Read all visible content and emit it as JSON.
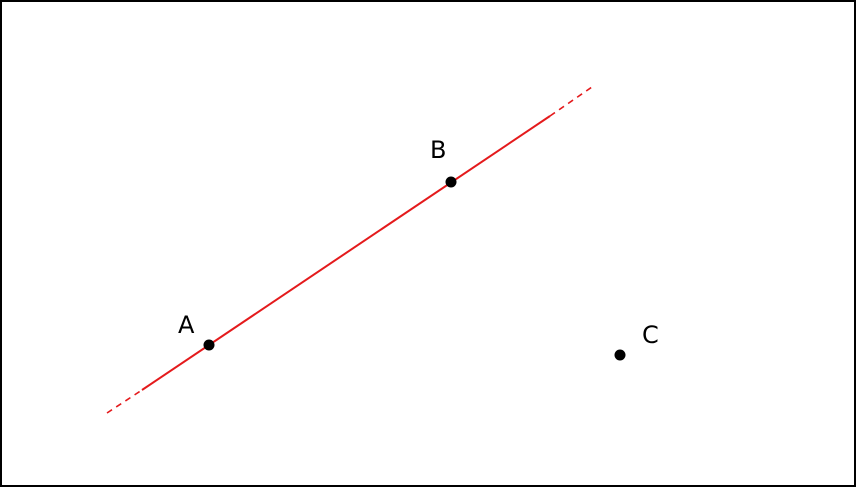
{
  "diagram": {
    "line_color": "#e41a1c",
    "point_color": "#000000",
    "points": [
      {
        "id": "A",
        "label": "A"
      },
      {
        "id": "B",
        "label": "B"
      },
      {
        "id": "C",
        "label": "C"
      }
    ],
    "line": {
      "through": [
        "A",
        "B"
      ],
      "extended_dashed_ends": true
    }
  }
}
